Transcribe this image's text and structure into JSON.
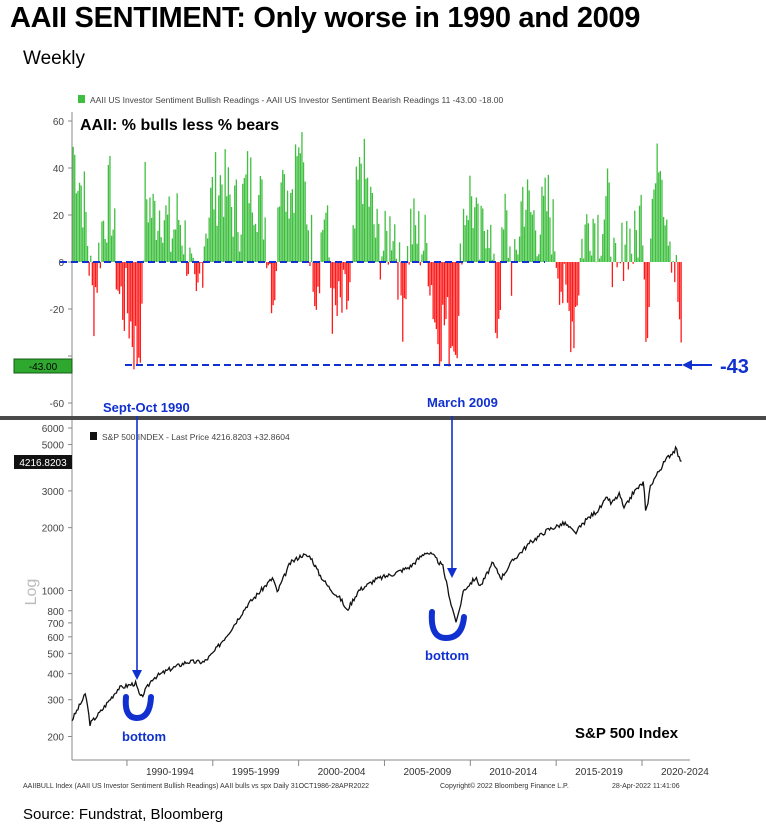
{
  "header": {
    "title": "AAII SENTIMENT: Only worse in 1990 and 2009",
    "subtitle": "Weekly"
  },
  "source": "Source: Fundstrat, Bloomberg",
  "colors": {
    "bull": "#3fbf3f",
    "bear": "#ff1a1a",
    "annotation": "#1030d0",
    "spx": "#111111",
    "separator": "#4a4a4a",
    "last_value_box": "#2ea82e"
  },
  "chart_data": [
    {
      "type": "bar",
      "name": "sentiment-panel",
      "legend": "AAII US Investor Sentiment Bullish Readings - AAII US Investor Sentiment Bearish Readings 11   -43.00   -18.00",
      "inner_title": "AAII: % bulls less % bears",
      "x_range": [
        1986.8,
        2022.33
      ],
      "ylim": [
        -65,
        65
      ],
      "y_ticks": [
        60,
        40,
        20,
        0,
        -20,
        -40,
        -60
      ],
      "y_tick_labels": [
        "60",
        "40",
        "20",
        "0",
        "-20",
        "-40",
        "-60"
      ],
      "last_value_label": "-43.00",
      "last_value": -43,
      "reference_line": -43,
      "callout": "-43",
      "series": {
        "name": "Bulls minus bears (%)",
        "x": [
          1986.8,
          1987.5,
          1988.0,
          1988.5,
          1989.0,
          1989.5,
          1990.0,
          1990.4,
          1990.75,
          1991.0,
          1991.5,
          1992.0,
          1992.5,
          1993.0,
          1993.5,
          1994.0,
          1994.5,
          1995.0,
          1995.5,
          1996.0,
          1996.5,
          1997.0,
          1997.5,
          1998.0,
          1998.5,
          1999.0,
          1999.5,
          2000.0,
          2000.5,
          2001.0,
          2001.5,
          2002.0,
          2002.5,
          2003.0,
          2003.5,
          2004.0,
          2004.5,
          2005.0,
          2005.5,
          2006.0,
          2006.5,
          2007.0,
          2007.5,
          2008.0,
          2008.5,
          2009.0,
          2009.2,
          2009.5,
          2010.0,
          2010.5,
          2011.0,
          2011.5,
          2012.0,
          2012.5,
          2013.0,
          2013.5,
          2014.0,
          2014.5,
          2015.0,
          2015.5,
          2016.0,
          2016.5,
          2017.0,
          2017.5,
          2018.0,
          2018.5,
          2019.0,
          2019.5,
          2020.0,
          2020.25,
          2020.5,
          2021.0,
          2021.5,
          2022.0,
          2022.33
        ],
        "values": [
          50,
          25,
          -20,
          15,
          30,
          -15,
          -20,
          -35,
          -43,
          30,
          20,
          25,
          10,
          20,
          5,
          -25,
          15,
          30,
          35,
          25,
          20,
          35,
          30,
          20,
          -15,
          40,
          30,
          50,
          20,
          -10,
          25,
          -25,
          -20,
          -15,
          45,
          30,
          10,
          5,
          20,
          -20,
          15,
          10,
          5,
          -30,
          -25,
          -38,
          -41,
          20,
          30,
          5,
          25,
          -30,
          20,
          -10,
          30,
          20,
          15,
          25,
          5,
          -20,
          -25,
          10,
          20,
          15,
          25,
          -15,
          15,
          5,
          25,
          -35,
          25,
          40,
          20,
          -10,
          -43
        ]
      },
      "annotations": [
        {
          "label": "Sept-Oct 1990",
          "x": 1990.75
        },
        {
          "label": "March 2009",
          "x": 2009.2
        }
      ]
    },
    {
      "type": "line",
      "name": "spx-panel",
      "legend": "S&P 500 INDEX - Last Price 4216.8203   +32.8604",
      "inner_title": "S&P 500 Index",
      "ylabel": "Log",
      "yscale": "log",
      "x_range": [
        1986.8,
        2022.33
      ],
      "ylim": [
        180,
        6500
      ],
      "y_ticks": [
        6000,
        5000,
        4000,
        3000,
        2000,
        1000,
        800,
        700,
        600,
        500,
        400,
        300,
        200
      ],
      "y_tick_labels": [
        "6000",
        "5000",
        "4000",
        "3000",
        "2000",
        "1000",
        "800",
        "700",
        "600",
        "500",
        "400",
        "300",
        "200"
      ],
      "last_value_label": "4216.8203",
      "x_tick_labels": [
        "1990-1994",
        "1995-1999",
        "2000-2004",
        "2005-2009",
        "2010-2014",
        "2015-2019",
        "2020-2024"
      ],
      "series": {
        "name": "S&P 500 Index",
        "x": [
          1986.8,
          1987.6,
          1987.85,
          1988.5,
          1989.5,
          1990.5,
          1990.8,
          1991.5,
          1992.5,
          1993.5,
          1994.5,
          1995.0,
          1996.0,
          1997.0,
          1998.5,
          1998.75,
          1999.5,
          2000.2,
          2000.7,
          2001.2,
          2001.7,
          2002.5,
          2002.8,
          2003.5,
          2004.5,
          2005.5,
          2006.5,
          2007.4,
          2007.8,
          2008.4,
          2008.9,
          2009.2,
          2009.6,
          2010.3,
          2010.6,
          2011.3,
          2011.8,
          2012.5,
          2013.5,
          2014.5,
          2015.5,
          2016.1,
          2016.8,
          2017.5,
          2018.0,
          2018.2,
          2018.7,
          2018.95,
          2019.5,
          2020.1,
          2020.22,
          2020.5,
          2021.0,
          2021.5,
          2022.0,
          2022.15,
          2022.33
        ],
        "values": [
          240,
          320,
          230,
          265,
          340,
          360,
          305,
          380,
          420,
          455,
          455,
          500,
          640,
          850,
          1150,
          980,
          1350,
          1480,
          1450,
          1200,
          1050,
          900,
          800,
          1000,
          1130,
          1200,
          1300,
          1530,
          1480,
          1300,
          850,
          700,
          1000,
          1150,
          1050,
          1350,
          1150,
          1400,
          1700,
          1950,
          2100,
          1880,
          2200,
          2450,
          2800,
          2600,
          2900,
          2450,
          2950,
          3300,
          2300,
          3200,
          3750,
          4350,
          4780,
          4300,
          4216.82
        ]
      },
      "annotations": [
        {
          "label": "bottom",
          "x": 1990.8
        },
        {
          "label": "bottom",
          "x": 2009.2
        }
      ]
    }
  ],
  "footer": {
    "left": "AAIIBULL Index (AAII US Investor Sentiment Bullish Readings) AAII bulls vs spx  Daily 31OCT1986-28APR2022",
    "center": "Copyright© 2022 Bloomberg Finance L.P.",
    "right": "28-Apr-2022 11:41:06"
  }
}
